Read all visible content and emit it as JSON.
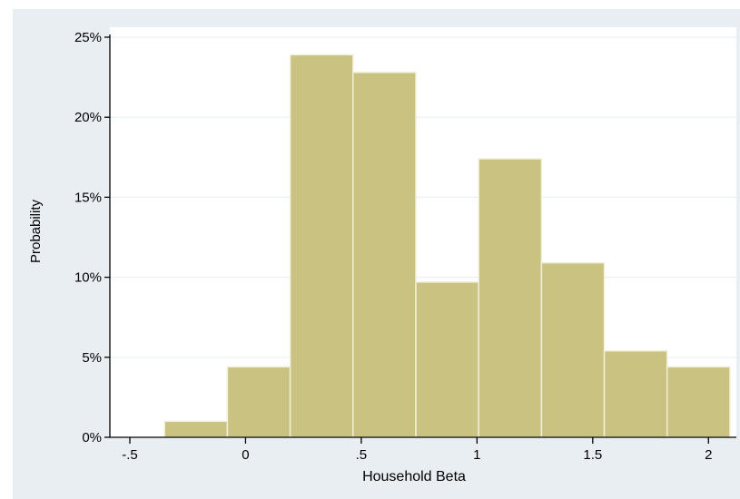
{
  "heading_fragment": "",
  "chart_data": {
    "type": "bar",
    "subtype": "histogram",
    "title": "",
    "xlabel": "Household Beta",
    "ylabel": "Probability",
    "bin_edges": [
      -0.35,
      -0.0786,
      0.1929,
      0.4643,
      0.7357,
      1.0071,
      1.2786,
      1.55,
      1.8214,
      2.0929
    ],
    "values": [
      1.0,
      4.4,
      23.9,
      22.8,
      9.7,
      17.4,
      10.9,
      5.4,
      4.4
    ],
    "xlim": [
      -0.55,
      2.14
    ],
    "ylim": [
      0,
      25
    ],
    "xticks": [
      -0.5,
      0,
      0.5,
      1,
      1.5,
      2
    ],
    "xtick_labels": [
      "-.5",
      "0",
      ".5",
      "1",
      "1.5",
      "2"
    ],
    "yticks": [
      0,
      5,
      10,
      15,
      20,
      25
    ],
    "ytick_labels": [
      "0%",
      "5%",
      "10%",
      "15%",
      "20%",
      "25%"
    ],
    "grid": true,
    "colors": {
      "bar_fill": "#c9c281",
      "bar_edge": "#f2efd8",
      "outer_background": "#e9eef2",
      "plot_background": "#ffffff",
      "grid": "#eaf0f3",
      "axis": "#000000"
    }
  }
}
